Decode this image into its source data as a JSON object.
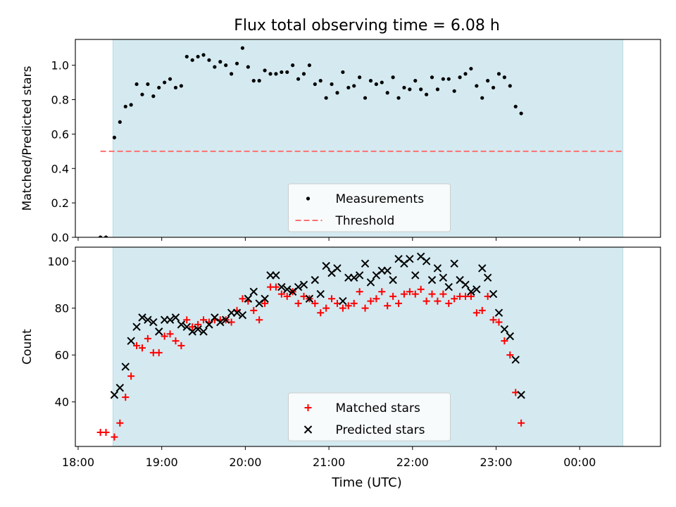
{
  "figure": {
    "title": "Flux total observing time = 6.08 h",
    "xlabel": "Time (UTC)",
    "xticks": [
      "18:00",
      "19:00",
      "20:00",
      "21:00",
      "22:00",
      "23:00",
      "00:00"
    ]
  },
  "colors": {
    "shade": "#d4eaf0",
    "shade_edge": "#b9dbe3",
    "measurement": "#000000",
    "threshold": "#ff7070",
    "matched": "#ff0000",
    "predicted": "#000000"
  },
  "chart_data": [
    {
      "type": "scatter",
      "ylabel": "Matched/Predicted stars",
      "xlim": [
        "17:58",
        "00:58"
      ],
      "ylim": [
        0,
        1.15
      ],
      "yticks": [
        "0.0",
        "0.2",
        "0.4",
        "0.6",
        "0.8",
        "1.0"
      ],
      "shaded_span": [
        "18:25",
        "00:31"
      ],
      "threshold": {
        "name": "Threshold",
        "value": 0.5,
        "x_range": [
          "18:16",
          "00:31"
        ]
      },
      "legend": {
        "location": "lower-center",
        "entries": [
          "Measurements",
          "Threshold"
        ]
      },
      "series": [
        {
          "name": "Measurements",
          "marker": "dot",
          "points": [
            [
              "18:16",
              0.0
            ],
            [
              "18:20",
              0.0
            ],
            [
              "18:26",
              0.58
            ],
            [
              "18:30",
              0.67
            ],
            [
              "18:34",
              0.76
            ],
            [
              "18:38",
              0.77
            ],
            [
              "18:42",
              0.89
            ],
            [
              "18:46",
              0.83
            ],
            [
              "18:50",
              0.89
            ],
            [
              "18:54",
              0.82
            ],
            [
              "18:58",
              0.87
            ],
            [
              "19:02",
              0.9
            ],
            [
              "19:06",
              0.92
            ],
            [
              "19:10",
              0.87
            ],
            [
              "19:14",
              0.88
            ],
            [
              "19:18",
              1.05
            ],
            [
              "19:22",
              1.03
            ],
            [
              "19:26",
              1.05
            ],
            [
              "19:30",
              1.06
            ],
            [
              "19:34",
              1.03
            ],
            [
              "19:38",
              0.99
            ],
            [
              "19:42",
              1.02
            ],
            [
              "19:46",
              1.0
            ],
            [
              "19:50",
              0.95
            ],
            [
              "19:54",
              1.01
            ],
            [
              "19:58",
              1.1
            ],
            [
              "20:02",
              0.99
            ],
            [
              "20:06",
              0.91
            ],
            [
              "20:10",
              0.91
            ],
            [
              "20:14",
              0.97
            ],
            [
              "20:18",
              0.95
            ],
            [
              "20:22",
              0.95
            ],
            [
              "20:26",
              0.96
            ],
            [
              "20:30",
              0.96
            ],
            [
              "20:34",
              1.0
            ],
            [
              "20:38",
              0.92
            ],
            [
              "20:42",
              0.95
            ],
            [
              "20:46",
              1.0
            ],
            [
              "20:50",
              0.89
            ],
            [
              "20:54",
              0.91
            ],
            [
              "20:58",
              0.81
            ],
            [
              "21:02",
              0.89
            ],
            [
              "21:06",
              0.84
            ],
            [
              "21:10",
              0.96
            ],
            [
              "21:14",
              0.87
            ],
            [
              "21:18",
              0.88
            ],
            [
              "21:22",
              0.93
            ],
            [
              "21:26",
              0.81
            ],
            [
              "21:30",
              0.91
            ],
            [
              "21:34",
              0.89
            ],
            [
              "21:38",
              0.9
            ],
            [
              "21:42",
              0.84
            ],
            [
              "21:46",
              0.93
            ],
            [
              "21:50",
              0.81
            ],
            [
              "21:54",
              0.87
            ],
            [
              "21:58",
              0.86
            ],
            [
              "22:02",
              0.91
            ],
            [
              "22:06",
              0.86
            ],
            [
              "22:10",
              0.83
            ],
            [
              "22:14",
              0.93
            ],
            [
              "22:18",
              0.86
            ],
            [
              "22:22",
              0.92
            ],
            [
              "22:26",
              0.92
            ],
            [
              "22:30",
              0.85
            ],
            [
              "22:34",
              0.93
            ],
            [
              "22:38",
              0.95
            ],
            [
              "22:42",
              0.98
            ],
            [
              "22:46",
              0.88
            ],
            [
              "22:50",
              0.81
            ],
            [
              "22:54",
              0.91
            ],
            [
              "22:58",
              0.87
            ],
            [
              "23:02",
              0.95
            ],
            [
              "23:06",
              0.93
            ],
            [
              "23:10",
              0.88
            ],
            [
              "23:14",
              0.76
            ],
            [
              "23:18",
              0.72
            ]
          ]
        }
      ]
    },
    {
      "type": "scatter",
      "ylabel": "Count",
      "xlim": [
        "17:58",
        "00:58"
      ],
      "ylim": [
        21,
        106
      ],
      "yticks": [
        "40",
        "60",
        "80",
        "100"
      ],
      "shaded_span": [
        "18:25",
        "00:31"
      ],
      "legend": {
        "location": "lower-center",
        "entries": [
          "Matched stars",
          "Predicted stars"
        ]
      },
      "series": [
        {
          "name": "Matched stars",
          "marker": "plus",
          "points": [
            [
              "18:16",
              27
            ],
            [
              "18:20",
              27
            ],
            [
              "18:26",
              25
            ],
            [
              "18:30",
              31
            ],
            [
              "18:34",
              42
            ],
            [
              "18:38",
              51
            ],
            [
              "18:42",
              64
            ],
            [
              "18:46",
              63
            ],
            [
              "18:50",
              67
            ],
            [
              "18:54",
              61
            ],
            [
              "18:58",
              61
            ],
            [
              "19:02",
              68
            ],
            [
              "19:06",
              69
            ],
            [
              "19:10",
              66
            ],
            [
              "19:14",
              64
            ],
            [
              "19:18",
              75
            ],
            [
              "19:22",
              72
            ],
            [
              "19:26",
              73
            ],
            [
              "19:30",
              75
            ],
            [
              "19:34",
              74
            ],
            [
              "19:38",
              75
            ],
            [
              "19:42",
              75
            ],
            [
              "19:46",
              75
            ],
            [
              "19:50",
              74
            ],
            [
              "19:54",
              79
            ],
            [
              "19:58",
              84
            ],
            [
              "20:02",
              83
            ],
            [
              "20:06",
              79
            ],
            [
              "20:10",
              75
            ],
            [
              "20:14",
              82
            ],
            [
              "20:18",
              89
            ],
            [
              "20:22",
              89
            ],
            [
              "20:26",
              86
            ],
            [
              "20:30",
              85
            ],
            [
              "20:34",
              87
            ],
            [
              "20:38",
              82
            ],
            [
              "20:42",
              85
            ],
            [
              "20:46",
              84
            ],
            [
              "20:50",
              82
            ],
            [
              "20:54",
              78
            ],
            [
              "20:58",
              80
            ],
            [
              "21:02",
              84
            ],
            [
              "21:06",
              82
            ],
            [
              "21:10",
              80
            ],
            [
              "21:14",
              81
            ],
            [
              "21:18",
              82
            ],
            [
              "21:22",
              87
            ],
            [
              "21:26",
              80
            ],
            [
              "21:30",
              83
            ],
            [
              "21:34",
              84
            ],
            [
              "21:38",
              87
            ],
            [
              "21:42",
              81
            ],
            [
              "21:46",
              85
            ],
            [
              "21:50",
              82
            ],
            [
              "21:54",
              86
            ],
            [
              "21:58",
              87
            ],
            [
              "22:02",
              86
            ],
            [
              "22:06",
              88
            ],
            [
              "22:10",
              83
            ],
            [
              "22:14",
              86
            ],
            [
              "22:18",
              83
            ],
            [
              "22:22",
              86
            ],
            [
              "22:26",
              82
            ],
            [
              "22:30",
              84
            ],
            [
              "22:34",
              85
            ],
            [
              "22:38",
              85
            ],
            [
              "22:42",
              85
            ],
            [
              "22:46",
              78
            ],
            [
              "22:50",
              79
            ],
            [
              "22:54",
              85
            ],
            [
              "22:58",
              75
            ],
            [
              "23:02",
              74
            ],
            [
              "23:06",
              66
            ],
            [
              "23:10",
              60
            ],
            [
              "23:14",
              44
            ],
            [
              "23:18",
              31
            ]
          ]
        },
        {
          "name": "Predicted stars",
          "marker": "x",
          "points": [
            [
              "18:26",
              43
            ],
            [
              "18:30",
              46
            ],
            [
              "18:34",
              55
            ],
            [
              "18:38",
              66
            ],
            [
              "18:42",
              72
            ],
            [
              "18:46",
              76
            ],
            [
              "18:50",
              75
            ],
            [
              "18:54",
              74
            ],
            [
              "18:58",
              70
            ],
            [
              "19:02",
              75
            ],
            [
              "19:06",
              75
            ],
            [
              "19:10",
              76
            ],
            [
              "19:14",
              73
            ],
            [
              "19:18",
              72
            ],
            [
              "19:22",
              70
            ],
            [
              "19:26",
              71
            ],
            [
              "19:30",
              70
            ],
            [
              "19:34",
              73
            ],
            [
              "19:38",
              76
            ],
            [
              "19:42",
              74
            ],
            [
              "19:46",
              75
            ],
            [
              "19:50",
              78
            ],
            [
              "19:54",
              78
            ],
            [
              "19:58",
              77
            ],
            [
              "20:02",
              84
            ],
            [
              "20:06",
              87
            ],
            [
              "20:10",
              82
            ],
            [
              "20:14",
              84
            ],
            [
              "20:18",
              94
            ],
            [
              "20:22",
              94
            ],
            [
              "20:26",
              89
            ],
            [
              "20:30",
              88
            ],
            [
              "20:34",
              87
            ],
            [
              "20:38",
              89
            ],
            [
              "20:42",
              90
            ],
            [
              "20:46",
              84
            ],
            [
              "20:50",
              92
            ],
            [
              "20:54",
              86
            ],
            [
              "20:58",
              98
            ],
            [
              "21:02",
              95
            ],
            [
              "21:06",
              97
            ],
            [
              "21:10",
              83
            ],
            [
              "21:14",
              93
            ],
            [
              "21:18",
              93
            ],
            [
              "21:22",
              94
            ],
            [
              "21:26",
              99
            ],
            [
              "21:30",
              91
            ],
            [
              "21:34",
              94
            ],
            [
              "21:38",
              96
            ],
            [
              "21:42",
              96
            ],
            [
              "21:46",
              92
            ],
            [
              "21:50",
              101
            ],
            [
              "21:54",
              99
            ],
            [
              "21:58",
              101
            ],
            [
              "22:02",
              94
            ],
            [
              "22:06",
              102
            ],
            [
              "22:10",
              100
            ],
            [
              "22:14",
              92
            ],
            [
              "22:18",
              97
            ],
            [
              "22:22",
              93
            ],
            [
              "22:26",
              89
            ],
            [
              "22:30",
              99
            ],
            [
              "22:34",
              92
            ],
            [
              "22:38",
              90
            ],
            [
              "22:42",
              87
            ],
            [
              "22:46",
              88
            ],
            [
              "22:50",
              97
            ],
            [
              "22:54",
              93
            ],
            [
              "22:58",
              86
            ],
            [
              "23:02",
              78
            ],
            [
              "23:06",
              71
            ],
            [
              "23:10",
              68
            ],
            [
              "23:14",
              58
            ],
            [
              "23:18",
              43
            ]
          ]
        }
      ]
    }
  ]
}
